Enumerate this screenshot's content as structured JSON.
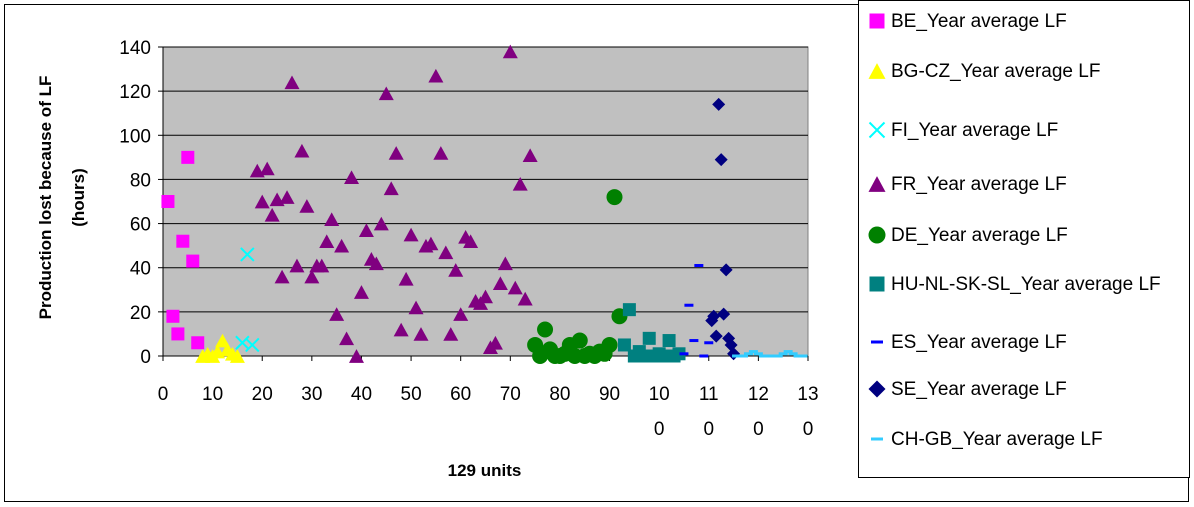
{
  "chart_data": {
    "type": "scatter",
    "xlabel": "129 units",
    "ylabel": "Production  lost because of LF\n(hours)",
    "xlim": [
      0,
      130
    ],
    "ylim": [
      0,
      140
    ],
    "x_ticks": [
      {
        "value": 0,
        "label": "0"
      },
      {
        "value": 10,
        "label": "10"
      },
      {
        "value": 20,
        "label": "20"
      },
      {
        "value": 30,
        "label": "30"
      },
      {
        "value": 40,
        "label": "40"
      },
      {
        "value": 50,
        "label": "50"
      },
      {
        "value": 60,
        "label": "60"
      },
      {
        "value": 70,
        "label": "70"
      },
      {
        "value": 80,
        "label": "80"
      },
      {
        "value": 90,
        "label": "90"
      },
      {
        "value": 100,
        "label": "10\n0"
      },
      {
        "value": 110,
        "label": "11\n0"
      },
      {
        "value": 120,
        "label": "12\n0"
      },
      {
        "value": 130,
        "label": "13\n0"
      }
    ],
    "y_ticks": [
      0,
      20,
      40,
      60,
      80,
      100,
      120,
      140
    ],
    "grid": "horizontal",
    "plot_background": "#c0c0c0",
    "legend_position": "right",
    "series": [
      {
        "name": "BE_Year average LF",
        "marker": "square",
        "color": "#ff00ff",
        "points": [
          [
            1,
            70
          ],
          [
            2,
            18
          ],
          [
            3,
            10
          ],
          [
            4,
            52
          ],
          [
            5,
            90
          ],
          [
            6,
            43
          ],
          [
            7,
            6
          ]
        ]
      },
      {
        "name": "BG-CZ_Year average LF",
        "marker": "triangle",
        "color": "#ffff00",
        "points": [
          [
            8,
            0
          ],
          [
            9,
            1
          ],
          [
            10,
            0
          ],
          [
            11,
            2
          ],
          [
            12,
            7
          ],
          [
            13,
            3
          ],
          [
            14,
            1
          ],
          [
            15,
            0
          ]
        ]
      },
      {
        "name": "FI_Year average LF",
        "marker": "x",
        "color": "#00ffff",
        "points": [
          [
            16,
            6
          ],
          [
            17,
            46
          ],
          [
            18,
            5
          ]
        ]
      },
      {
        "name": "FR_Year average LF",
        "marker": "triangle",
        "color": "#800080",
        "points": [
          [
            19,
            84
          ],
          [
            20,
            70
          ],
          [
            21,
            85
          ],
          [
            22,
            64
          ],
          [
            23,
            71
          ],
          [
            24,
            36
          ],
          [
            25,
            72
          ],
          [
            26,
            124
          ],
          [
            27,
            41
          ],
          [
            28,
            93
          ],
          [
            29,
            68
          ],
          [
            30,
            36
          ],
          [
            31,
            41
          ],
          [
            32,
            41
          ],
          [
            33,
            52
          ],
          [
            34,
            62
          ],
          [
            35,
            19
          ],
          [
            36,
            50
          ],
          [
            37,
            8
          ],
          [
            38,
            81
          ],
          [
            39,
            0
          ],
          [
            40,
            29
          ],
          [
            41,
            57
          ],
          [
            42,
            44
          ],
          [
            43,
            42
          ],
          [
            44,
            60
          ],
          [
            45,
            119
          ],
          [
            46,
            76
          ],
          [
            47,
            92
          ],
          [
            48,
            12
          ],
          [
            49,
            35
          ],
          [
            50,
            55
          ],
          [
            51,
            22
          ],
          [
            52,
            10
          ],
          [
            53,
            50
          ],
          [
            54,
            51
          ],
          [
            55,
            127
          ],
          [
            56,
            92
          ],
          [
            57,
            47
          ],
          [
            58,
            10
          ],
          [
            59,
            39
          ],
          [
            60,
            19
          ],
          [
            61,
            54
          ],
          [
            62,
            52
          ],
          [
            63,
            25
          ],
          [
            64,
            24
          ],
          [
            65,
            27
          ],
          [
            66,
            4
          ],
          [
            67,
            6
          ],
          [
            68,
            33
          ],
          [
            69,
            42
          ],
          [
            70,
            138
          ],
          [
            71,
            31
          ],
          [
            72,
            78
          ],
          [
            73,
            26
          ],
          [
            74,
            91
          ]
        ]
      },
      {
        "name": "DE_Year average LF",
        "marker": "circle",
        "color": "#008000",
        "points": [
          [
            75,
            5
          ],
          [
            76,
            0
          ],
          [
            77,
            12
          ],
          [
            78,
            3
          ],
          [
            79,
            0
          ],
          [
            80,
            0
          ],
          [
            81,
            1
          ],
          [
            82,
            5
          ],
          [
            83,
            0
          ],
          [
            84,
            7
          ],
          [
            85,
            0
          ],
          [
            86,
            1
          ],
          [
            87,
            0
          ],
          [
            88,
            2
          ],
          [
            89,
            1
          ],
          [
            90,
            5
          ],
          [
            91,
            72
          ],
          [
            92,
            18
          ]
        ]
      },
      {
        "name": "HU-NL-SK-SL_Year average LF",
        "marker": "square",
        "color": "#008080",
        "points": [
          [
            93,
            5
          ],
          [
            94,
            21
          ],
          [
            95,
            0
          ],
          [
            96,
            2
          ],
          [
            97,
            0
          ],
          [
            98,
            8
          ],
          [
            99,
            0
          ],
          [
            100,
            1
          ],
          [
            101,
            0
          ],
          [
            102,
            7
          ],
          [
            103,
            0
          ],
          [
            104,
            1
          ]
        ]
      },
      {
        "name": "ES_Year average LF",
        "marker": "dash",
        "color": "#0000ff",
        "points": [
          [
            105,
            1
          ],
          [
            106,
            23
          ],
          [
            107,
            7
          ],
          [
            108,
            41
          ],
          [
            109,
            0
          ],
          [
            110,
            6
          ]
        ]
      },
      {
        "name": "SE_Year average LF",
        "marker": "diamond",
        "color": "#000080",
        "points": [
          [
            110.6,
            16
          ],
          [
            111,
            18
          ],
          [
            111.5,
            9
          ],
          [
            112,
            114
          ],
          [
            112.5,
            89
          ],
          [
            113,
            19
          ],
          [
            113.5,
            39
          ],
          [
            114,
            8
          ],
          [
            114.5,
            5
          ],
          [
            115,
            1
          ]
        ]
      },
      {
        "name": "CH-GB_Year average LF",
        "marker": "dash",
        "color": "#33ccff",
        "points": [
          [
            115.6,
            0
          ],
          [
            116,
            0
          ],
          [
            117,
            0
          ],
          [
            118,
            1
          ],
          [
            119,
            2
          ],
          [
            120,
            1
          ],
          [
            121,
            0
          ],
          [
            122,
            0
          ],
          [
            123,
            0
          ],
          [
            124,
            0
          ],
          [
            125,
            1
          ],
          [
            126,
            2
          ],
          [
            127,
            1
          ],
          [
            128,
            0
          ],
          [
            129,
            0
          ]
        ]
      }
    ]
  }
}
